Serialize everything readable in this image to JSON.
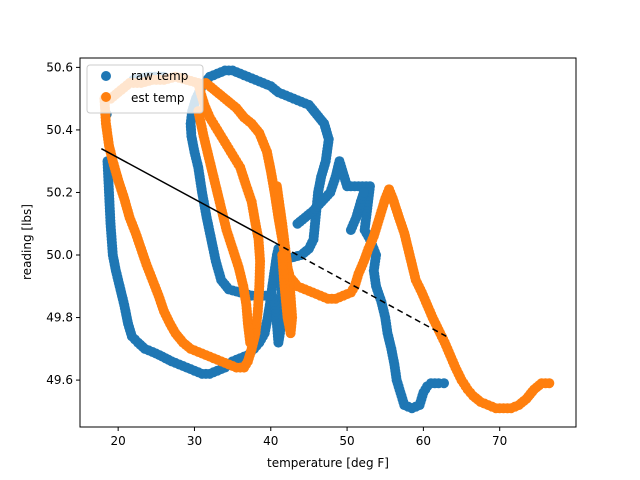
{
  "chart_data": {
    "type": "scatter",
    "title": "",
    "xlabel": "temperature [deg F]",
    "ylabel": "reading [lbs]",
    "xlim": [
      15,
      80
    ],
    "ylim": [
      49.45,
      50.63
    ],
    "xticks": [
      20,
      30,
      40,
      50,
      60,
      70
    ],
    "yticks": [
      49.6,
      49.8,
      50.0,
      50.2,
      50.4,
      50.6
    ],
    "xtick_labels": [
      "20",
      "30",
      "40",
      "50",
      "60",
      "70"
    ],
    "ytick_labels": [
      "49.6",
      "49.8",
      "50.0",
      "50.2",
      "50.4",
      "50.6"
    ],
    "grid": false,
    "legend": {
      "position": "top-left"
    },
    "series": [
      {
        "name": "raw temp",
        "color": "#1f77b4",
        "marker": "circle",
        "points": [
          [
            18.5,
            50.45
          ],
          [
            18.6,
            50.3
          ],
          [
            18.8,
            50.2
          ],
          [
            19.0,
            50.1
          ],
          [
            19.3,
            50.0
          ],
          [
            19.7,
            49.95
          ],
          [
            20.2,
            49.9
          ],
          [
            20.8,
            49.84
          ],
          [
            21.3,
            49.78
          ],
          [
            21.8,
            49.74
          ],
          [
            22.6,
            49.72
          ],
          [
            23.5,
            49.7
          ],
          [
            24.5,
            49.69
          ],
          [
            25.4,
            49.68
          ],
          [
            26.2,
            49.67
          ],
          [
            27.0,
            49.66
          ],
          [
            28.0,
            49.65
          ],
          [
            29.0,
            49.64
          ],
          [
            30.0,
            49.63
          ],
          [
            31.0,
            49.62
          ],
          [
            32.0,
            49.62
          ],
          [
            33.0,
            49.63
          ],
          [
            34.0,
            49.64
          ],
          [
            35.0,
            49.66
          ],
          [
            36.0,
            49.67
          ],
          [
            37.0,
            49.68
          ],
          [
            37.8,
            49.7
          ],
          [
            38.5,
            49.72
          ],
          [
            39.2,
            49.75
          ],
          [
            39.6,
            49.8
          ],
          [
            40.0,
            49.86
          ],
          [
            40.2,
            49.9
          ],
          [
            40.5,
            49.95
          ],
          [
            40.8,
            50.0
          ],
          [
            41.0,
            50.02
          ],
          [
            41.2,
            50.0
          ],
          [
            41.3,
            49.95
          ],
          [
            41.4,
            49.9
          ],
          [
            41.5,
            49.85
          ],
          [
            41.4,
            49.8
          ],
          [
            41.2,
            49.75
          ],
          [
            41.0,
            49.72
          ],
          [
            40.8,
            49.78
          ],
          [
            40.6,
            49.84
          ],
          [
            40.2,
            49.87
          ],
          [
            39.0,
            49.87
          ],
          [
            37.5,
            49.87
          ],
          [
            36.0,
            49.88
          ],
          [
            34.5,
            49.89
          ],
          [
            33.5,
            49.92
          ],
          [
            32.8,
            49.98
          ],
          [
            32.2,
            50.05
          ],
          [
            31.6,
            50.12
          ],
          [
            31.0,
            50.2
          ],
          [
            30.5,
            50.28
          ],
          [
            30.0,
            50.33
          ],
          [
            29.6,
            50.38
          ],
          [
            29.5,
            50.42
          ],
          [
            29.7,
            50.46
          ],
          [
            30.2,
            50.5
          ],
          [
            31.0,
            50.54
          ],
          [
            32.0,
            50.57
          ],
          [
            33.0,
            50.58
          ],
          [
            34.0,
            50.59
          ],
          [
            35.0,
            50.59
          ],
          [
            36.0,
            50.58
          ],
          [
            37.0,
            50.57
          ],
          [
            38.0,
            50.56
          ],
          [
            39.0,
            50.55
          ],
          [
            40.0,
            50.54
          ],
          [
            41.0,
            50.52
          ],
          [
            42.0,
            50.51
          ],
          [
            43.0,
            50.5
          ],
          [
            44.0,
            50.49
          ],
          [
            45.0,
            50.48
          ],
          [
            46.0,
            50.45
          ],
          [
            47.0,
            50.42
          ],
          [
            47.6,
            50.37
          ],
          [
            47.2,
            50.3
          ],
          [
            46.6,
            50.25
          ],
          [
            46.2,
            50.2
          ],
          [
            46.0,
            50.15
          ],
          [
            45.8,
            50.1
          ],
          [
            45.6,
            50.05
          ],
          [
            45.0,
            50.02
          ],
          [
            44.0,
            50.0
          ],
          [
            42.5,
            49.99
          ],
          [
            41.8,
            50.0
          ],
          [
            22.0,
            50.56
          ],
          [
            24.0,
            50.57
          ],
          [
            26.0,
            50.57
          ],
          [
            43.5,
            50.1
          ],
          [
            44.5,
            50.12
          ],
          [
            45.5,
            50.14
          ],
          [
            47.8,
            50.2
          ],
          [
            48.5,
            50.25
          ],
          [
            49.0,
            50.3
          ],
          [
            50.0,
            50.22
          ],
          [
            51.0,
            50.22
          ],
          [
            52.0,
            50.22
          ],
          [
            53.0,
            50.22
          ],
          [
            52.8,
            50.18
          ],
          [
            52.5,
            50.12
          ],
          [
            52.3,
            50.08
          ],
          [
            53.0,
            50.05
          ],
          [
            53.8,
            50.0
          ],
          [
            53.5,
            49.95
          ],
          [
            53.8,
            49.9
          ],
          [
            54.5,
            49.85
          ],
          [
            55.0,
            49.8
          ],
          [
            55.3,
            49.75
          ],
          [
            55.8,
            49.7
          ],
          [
            56.2,
            49.65
          ],
          [
            56.5,
            49.6
          ],
          [
            57.0,
            49.56
          ],
          [
            57.5,
            49.52
          ],
          [
            58.5,
            49.51
          ],
          [
            59.5,
            49.52
          ],
          [
            60.0,
            49.56
          ],
          [
            60.5,
            49.58
          ],
          [
            61.0,
            49.59
          ],
          [
            62.0,
            49.59
          ],
          [
            62.7,
            49.59
          ],
          [
            50.5,
            50.08
          ],
          [
            51.2,
            50.12
          ],
          [
            51.8,
            50.17
          ],
          [
            52.2,
            50.2
          ]
        ]
      },
      {
        "name": "est temp",
        "color": "#ff7f0e",
        "marker": "circle",
        "points": [
          [
            18.2,
            50.5
          ],
          [
            18.4,
            50.42
          ],
          [
            18.8,
            50.35
          ],
          [
            19.3,
            50.3
          ],
          [
            20.0,
            50.24
          ],
          [
            20.8,
            50.18
          ],
          [
            21.5,
            50.12
          ],
          [
            22.3,
            50.07
          ],
          [
            23.0,
            50.02
          ],
          [
            23.7,
            49.97
          ],
          [
            24.5,
            49.92
          ],
          [
            25.3,
            49.87
          ],
          [
            26.0,
            49.82
          ],
          [
            26.8,
            49.78
          ],
          [
            27.5,
            49.75
          ],
          [
            28.5,
            49.72
          ],
          [
            29.5,
            49.7
          ],
          [
            30.5,
            49.69
          ],
          [
            31.5,
            49.68
          ],
          [
            32.5,
            49.67
          ],
          [
            33.5,
            49.66
          ],
          [
            34.5,
            49.65
          ],
          [
            35.5,
            49.64
          ],
          [
            36.5,
            49.64
          ],
          [
            37.0,
            49.66
          ],
          [
            37.5,
            49.7
          ],
          [
            38.0,
            49.75
          ],
          [
            38.3,
            49.82
          ],
          [
            38.5,
            49.9
          ],
          [
            38.6,
            49.98
          ],
          [
            38.4,
            50.05
          ],
          [
            38.0,
            50.1
          ],
          [
            37.5,
            50.17
          ],
          [
            36.8,
            50.22
          ],
          [
            36.0,
            50.28
          ],
          [
            35.0,
            50.32
          ],
          [
            34.0,
            50.36
          ],
          [
            33.0,
            50.4
          ],
          [
            32.0,
            50.44
          ],
          [
            31.3,
            50.48
          ],
          [
            30.8,
            50.52
          ],
          [
            30.5,
            50.55
          ],
          [
            29.0,
            50.56
          ],
          [
            27.5,
            50.57
          ],
          [
            26.0,
            50.56
          ],
          [
            24.5,
            50.56
          ],
          [
            23.0,
            50.55
          ],
          [
            21.5,
            50.55
          ],
          [
            20.0,
            50.52
          ],
          [
            19.0,
            50.5
          ],
          [
            31.5,
            50.55
          ],
          [
            32.5,
            50.53
          ],
          [
            33.5,
            50.51
          ],
          [
            34.5,
            50.49
          ],
          [
            35.5,
            50.47
          ],
          [
            36.5,
            50.44
          ],
          [
            37.5,
            50.42
          ],
          [
            38.5,
            50.39
          ],
          [
            39.5,
            50.33
          ],
          [
            40.0,
            50.27
          ],
          [
            40.5,
            50.2
          ],
          [
            41.0,
            50.12
          ],
          [
            41.5,
            50.05
          ],
          [
            42.0,
            49.98
          ],
          [
            42.5,
            49.93
          ],
          [
            43.5,
            49.9
          ],
          [
            44.5,
            49.89
          ],
          [
            45.5,
            49.88
          ],
          [
            46.5,
            49.87
          ],
          [
            47.5,
            49.86
          ],
          [
            48.5,
            49.86
          ],
          [
            49.5,
            49.87
          ],
          [
            50.5,
            49.88
          ],
          [
            51.0,
            49.9
          ],
          [
            51.5,
            49.94
          ],
          [
            52.2,
            49.98
          ],
          [
            52.8,
            50.02
          ],
          [
            53.5,
            50.06
          ],
          [
            54.0,
            50.1
          ],
          [
            55.0,
            50.18
          ],
          [
            55.5,
            50.21
          ],
          [
            56.0,
            50.18
          ],
          [
            56.8,
            50.12
          ],
          [
            57.5,
            50.07
          ],
          [
            58.0,
            50.02
          ],
          [
            58.5,
            49.97
          ],
          [
            59.0,
            49.92
          ],
          [
            59.8,
            49.88
          ],
          [
            60.5,
            49.84
          ],
          [
            61.2,
            49.8
          ],
          [
            62.0,
            49.76
          ],
          [
            62.8,
            49.72
          ],
          [
            63.5,
            49.68
          ],
          [
            64.2,
            49.64
          ],
          [
            65.0,
            49.6
          ],
          [
            65.8,
            49.57
          ],
          [
            66.5,
            49.55
          ],
          [
            67.5,
            49.53
          ],
          [
            68.5,
            49.52
          ],
          [
            69.5,
            49.51
          ],
          [
            70.5,
            49.51
          ],
          [
            71.5,
            49.51
          ],
          [
            72.5,
            49.52
          ],
          [
            73.5,
            49.54
          ],
          [
            74.5,
            49.57
          ],
          [
            75.5,
            49.59
          ],
          [
            76.5,
            49.59
          ],
          [
            40.8,
            50.22
          ],
          [
            41.5,
            50.1
          ],
          [
            42.0,
            50.0
          ],
          [
            42.5,
            49.9
          ],
          [
            42.8,
            49.8
          ],
          [
            42.6,
            49.75
          ],
          [
            42.2,
            49.8
          ],
          [
            41.8,
            49.9
          ],
          [
            41.5,
            50.0
          ],
          [
            30.5,
            50.46
          ],
          [
            31.2,
            50.38
          ],
          [
            32.0,
            50.3
          ],
          [
            32.8,
            50.22
          ],
          [
            33.5,
            50.15
          ],
          [
            34.2,
            50.08
          ],
          [
            35.0,
            50.02
          ],
          [
            35.8,
            49.96
          ],
          [
            36.4,
            49.9
          ],
          [
            36.8,
            49.84
          ],
          [
            37.0,
            49.78
          ],
          [
            37.3,
            49.72
          ]
        ]
      }
    ],
    "fit_line": {
      "color": "#000000",
      "solid": [
        [
          17.8,
          50.34
        ],
        [
          40.5,
          50.04
        ]
      ],
      "dashed": [
        [
          40.5,
          50.04
        ],
        [
          63.0,
          49.74
        ]
      ]
    }
  }
}
